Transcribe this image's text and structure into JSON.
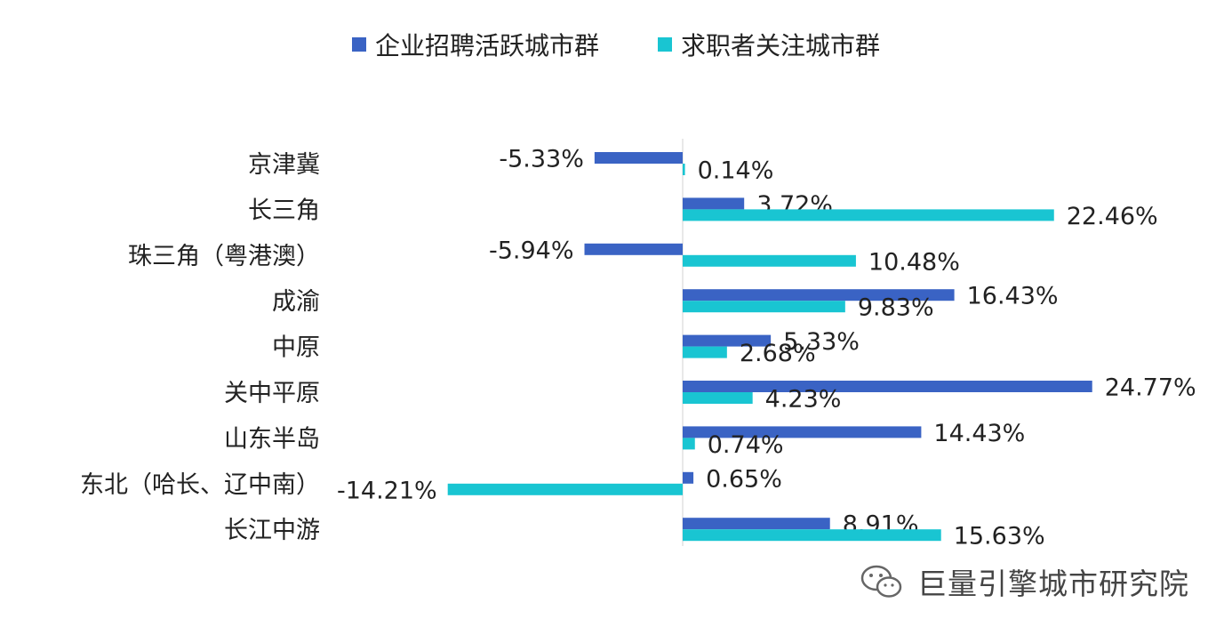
{
  "legend": {
    "series0": "企业招聘活跃城市群",
    "series1": "求职者关注城市群"
  },
  "watermark": {
    "icon": "wechat-icon",
    "text": "巨量引擎城市研究院"
  },
  "colors": {
    "series0": "#3a63c4",
    "series1": "#19c5d2"
  },
  "chart_data": {
    "type": "bar",
    "orientation": "horizontal",
    "categories": [
      "京津冀",
      "长三角",
      "珠三角（粤港澳）",
      "成渝",
      "中原",
      "关中平原",
      "山东半岛",
      "东北（哈长、辽中南）",
      "长江中游"
    ],
    "series": [
      {
        "name": "企业招聘活跃城市群",
        "values": [
          -5.33,
          3.72,
          -5.94,
          16.43,
          5.33,
          24.77,
          14.43,
          0.65,
          8.91
        ],
        "labels": [
          "-5.33%",
          "3.72%",
          "-5.94%",
          "16.43%",
          "5.33%",
          "24.77%",
          "14.43%",
          "0.65%",
          "8.91%"
        ]
      },
      {
        "name": "求职者关注城市群",
        "values": [
          0.14,
          22.46,
          10.48,
          9.83,
          2.68,
          4.23,
          0.74,
          -14.21,
          15.63
        ],
        "labels": [
          "0.14%",
          "22.46%",
          "10.48%",
          "9.83%",
          "2.68%",
          "4.23%",
          "0.74%",
          "-14.21%",
          "15.63%"
        ]
      }
    ],
    "legend_position": "top",
    "grid": false
  }
}
